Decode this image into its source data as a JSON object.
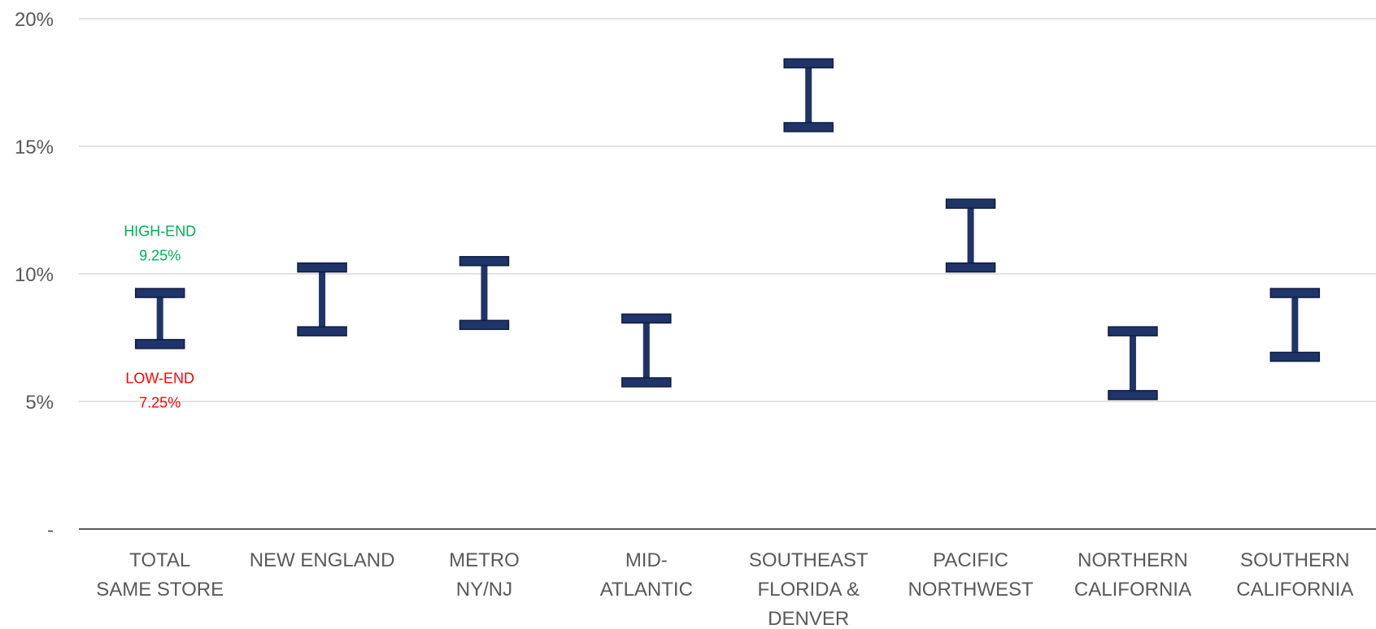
{
  "chart_data": {
    "type": "floating-range",
    "title": "",
    "xlabel": "",
    "ylabel": "",
    "ylim": [
      0,
      20
    ],
    "y_ticks": [
      {
        "value": 0,
        "label": "-"
      },
      {
        "value": 5,
        "label": "5%"
      },
      {
        "value": 10,
        "label": "10%"
      },
      {
        "value": 15,
        "label": "15%"
      },
      {
        "value": 20,
        "label": "20%"
      }
    ],
    "grid": true,
    "categories": [
      {
        "label_lines": [
          "TOTAL",
          "SAME STORE"
        ],
        "low": 7.25,
        "high": 9.25
      },
      {
        "label_lines": [
          "NEW ENGLAND"
        ],
        "low": 7.75,
        "high": 10.25
      },
      {
        "label_lines": [
          "METRO",
          "NY/NJ"
        ],
        "low": 8.0,
        "high": 10.5
      },
      {
        "label_lines": [
          "MID-",
          "ATLANTIC"
        ],
        "low": 5.75,
        "high": 8.25
      },
      {
        "label_lines": [
          "SOUTHEAST",
          "FLORIDA &",
          "DENVER"
        ],
        "low": 15.75,
        "high": 18.25
      },
      {
        "label_lines": [
          "PACIFIC",
          "NORTHWEST"
        ],
        "low": 10.25,
        "high": 12.75
      },
      {
        "label_lines": [
          "NORTHERN",
          "CALIFORNIA"
        ],
        "low": 5.25,
        "high": 7.75
      },
      {
        "label_lines": [
          "SOUTHERN",
          "CALIFORNIA"
        ],
        "low": 6.75,
        "high": 9.25
      }
    ],
    "annotations": {
      "high": {
        "category_index": 0,
        "lines": [
          "HIGH-END",
          "9.25%"
        ],
        "color": "#00B050"
      },
      "low": {
        "category_index": 0,
        "lines": [
          "LOW-END",
          "7.25%"
        ],
        "color": "#FF0000"
      }
    },
    "colors": {
      "bar": "#1F3468",
      "grid": "#D9D9D9",
      "axis": "#595959"
    }
  }
}
